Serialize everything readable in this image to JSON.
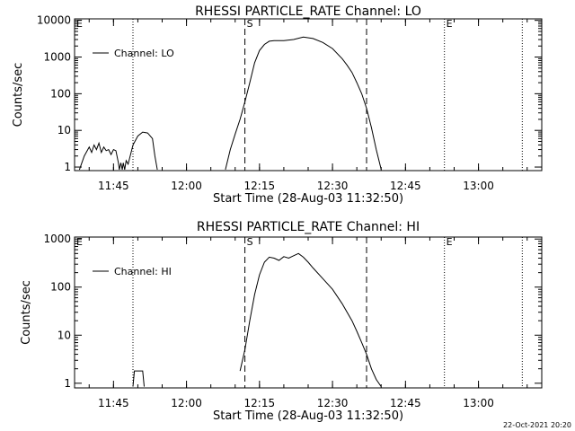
{
  "footer": {
    "timestamp": "22-Oct-2021 20:20"
  },
  "chart_data": [
    {
      "type": "line",
      "title": "RHESSI PARTICLE_RATE Channel: LO",
      "xlabel": "Start Time (28-Aug-03 11:32:50)",
      "ylabel": "Counts/sec",
      "yscale": "log",
      "xlim": [
        "11:37",
        "13:13"
      ],
      "ylim": [
        0.8,
        11000
      ],
      "x_ticks": [
        "11:45",
        "12:00",
        "12:15",
        "12:30",
        "12:45",
        "13:00"
      ],
      "y_ticks": [
        "1",
        "10",
        "100",
        "1000",
        "10000"
      ],
      "legend": {
        "label": "Channel: LO",
        "placement": "top-left"
      },
      "markers": {
        "dotted": [
          "11:49",
          "12:53",
          "13:09"
        ],
        "dashed": [
          "12:12",
          "12:37"
        ],
        "letters": [
          {
            "text": "E",
            "x": "11:37"
          },
          {
            "text": "S",
            "x": "12:12"
          },
          {
            "text": "E",
            "x": "12:53"
          }
        ]
      },
      "series": [
        {
          "segments": [
            {
              "x": [
                "11:38",
                "11:39",
                "11:40",
                "11:40.5",
                "11:41",
                "11:41.5",
                "11:42",
                "11:42.5",
                "11:43",
                "11:43.5",
                "11:44",
                "11:44.5",
                "11:45",
                "11:45.5",
                "11:46",
                "11:46.2",
                "11:46.5",
                "11:46.8",
                "11:47",
                "11:47.3",
                "11:47.6",
                "11:48",
                "11:49",
                "11:50",
                "11:51",
                "11:52",
                "11:53",
                "11:53.5",
                "11:54"
              ],
              "y": [
                0.85,
                2,
                3.5,
                2.5,
                4,
                3,
                4.5,
                2.5,
                3.5,
                2.8,
                3,
                2.2,
                3,
                2.8,
                1.3,
                0.85,
                1.3,
                0.85,
                1.3,
                0.85,
                1.5,
                1.2,
                4,
                7,
                9,
                8.5,
                6,
                2,
                0.85
              ]
            },
            {
              "x": [
                "12:08",
                "12:09",
                "12:10",
                "12:11",
                "12:12",
                "12:13",
                "12:14",
                "12:15",
                "12:16",
                "12:17",
                "12:18",
                "12:20",
                "12:22",
                "12:24",
                "12:26",
                "12:28",
                "12:30",
                "12:32",
                "12:33",
                "12:34",
                "12:35",
                "12:36",
                "12:37",
                "12:38",
                "12:39",
                "12:40"
              ],
              "y": [
                0.85,
                3,
                8,
                20,
                60,
                200,
                700,
                1500,
                2200,
                2700,
                2800,
                2800,
                3000,
                3500,
                3200,
                2500,
                1700,
                900,
                600,
                380,
                200,
                100,
                40,
                12,
                3,
                0.85
              ]
            }
          ]
        }
      ]
    },
    {
      "type": "line",
      "title": "RHESSI PARTICLE_RATE Channel: HI",
      "xlabel": "Start Time (28-Aug-03 11:32:50)",
      "ylabel": "Counts/sec",
      "yscale": "log",
      "xlim": [
        "11:37",
        "13:13"
      ],
      "ylim": [
        0.8,
        1100
      ],
      "x_ticks": [
        "11:45",
        "12:00",
        "12:15",
        "12:30",
        "12:45",
        "13:00"
      ],
      "y_ticks": [
        "1",
        "10",
        "100",
        "1000"
      ],
      "legend": {
        "label": "Channel: HI",
        "placement": "top-left"
      },
      "markers": {
        "dotted": [
          "11:49",
          "12:53",
          "13:09"
        ],
        "dashed": [
          "12:12",
          "12:37"
        ],
        "letters": [
          {
            "text": "E",
            "x": "11:37"
          },
          {
            "text": "S",
            "x": "12:12"
          },
          {
            "text": "E",
            "x": "12:53"
          }
        ]
      },
      "series": [
        {
          "segments": [
            {
              "x": [
                "11:49",
                "11:49.3",
                "11:51",
                "11:51.3"
              ],
              "y": [
                0.85,
                1.8,
                1.8,
                0.85
              ]
            },
            {
              "x": [
                "12:11",
                "12:12",
                "12:13",
                "12:14",
                "12:15",
                "12:16",
                "12:17",
                "12:18",
                "12:19",
                "12:20",
                "12:21",
                "12:22",
                "12:23",
                "12:24",
                "12:25",
                "12:26",
                "12:28",
                "12:30",
                "12:32",
                "12:34",
                "12:35",
                "12:36",
                "12:37",
                "12:38",
                "12:39",
                "12:40"
              ],
              "y": [
                1.8,
                5,
                20,
                70,
                180,
                330,
                420,
                400,
                360,
                430,
                400,
                450,
                500,
                420,
                330,
                250,
                150,
                90,
                45,
                20,
                12,
                7,
                4,
                2,
                1.2,
                0.85
              ]
            }
          ]
        }
      ]
    }
  ]
}
